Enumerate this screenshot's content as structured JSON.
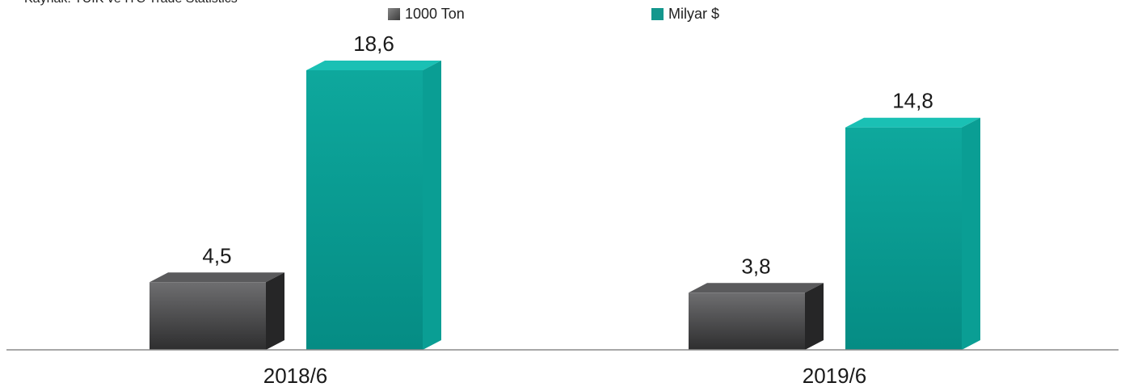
{
  "source_note": "Kaynak: TÜİK ve ITC Trade Statistics",
  "colors": {
    "tons_front_top": "#6e6e70",
    "tons_front_bottom": "#2e2e2f",
    "tons_top": "#5a5a5c",
    "tons_side": "#262627",
    "usd_front_top": "#0ea89d",
    "usd_front_bottom": "#058c84",
    "usd_top": "#1ac0b4",
    "usd_side": "#0a9e94",
    "axis": "#8a8a8a"
  },
  "chart_data": {
    "type": "bar",
    "categories": [
      "2018/6",
      "2019/6"
    ],
    "series": [
      {
        "name": "1000 Ton",
        "values": [
          4.5,
          3.8
        ],
        "labels": [
          "4,5",
          "3,8"
        ]
      },
      {
        "name": "Milyar $",
        "values": [
          18.6,
          14.8
        ],
        "labels": [
          "18,6",
          "14,8"
        ]
      }
    ],
    "title": "",
    "xlabel": "",
    "ylabel": "",
    "ylim": [
      0,
      18.6
    ],
    "grid": false,
    "legend": "top-center",
    "style": "3d-columns"
  }
}
